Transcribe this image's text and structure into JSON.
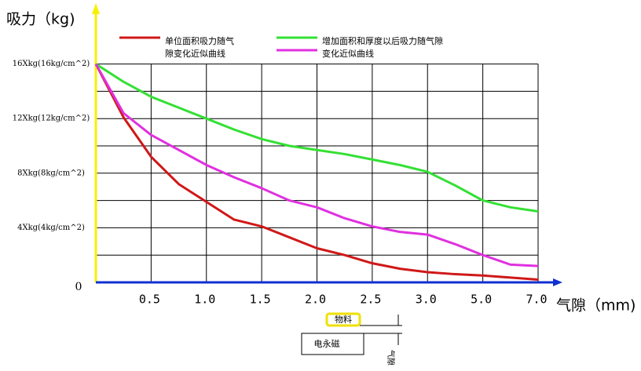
{
  "chart_data": {
    "type": "line",
    "y_axis_label": "吸力（kg)",
    "x_axis_label": "气隙（mm)",
    "categories": [
      null,
      null,
      "0.5",
      null,
      "1.0",
      null,
      "1.5",
      null,
      "2.0",
      null,
      "2.5",
      null,
      "3.0",
      null,
      "5.0",
      null,
      "7.0"
    ],
    "ylim": [
      0,
      20
    ],
    "yticks": [
      {
        "value": 0,
        "label": "0"
      },
      {
        "value": 4,
        "label": "4Xkg(4kg/cm^2)"
      },
      {
        "value": 8,
        "label": "8Xkg(8kg/cm^2)"
      },
      {
        "value": 12,
        "label": "12Xkg(12kg/cm^2)"
      },
      {
        "value": 16,
        "label": "16Xkg(16kg/cm^2)"
      }
    ],
    "minor_yticks": [
      2,
      6,
      10,
      14
    ],
    "grid": true,
    "series": [
      {
        "name": "单位面积吸力随气\n隙变化近似曲线",
        "color": "#d01818",
        "values": [
          16,
          12.1,
          9.2,
          7.2,
          5.9,
          4.6,
          4.1,
          3.3,
          2.5,
          2.0,
          1.4,
          1.0,
          0.75,
          0.6,
          0.5,
          0.35,
          0.2
        ]
      },
      {
        "name": "增加面积和厚度以后吸力随气隙",
        "color": "#33e033",
        "values": [
          16,
          14.7,
          13.6,
          12.8,
          12.0,
          11.2,
          10.5,
          10.0,
          9.7,
          9.4,
          9.0,
          8.6,
          8.1,
          7.1,
          6.0,
          5.5,
          5.2
        ]
      },
      {
        "name": "变化近似曲线",
        "color": "#e030e0",
        "values": [
          16,
          12.4,
          10.8,
          9.7,
          8.6,
          7.7,
          6.9,
          6.0,
          5.5,
          4.7,
          4.1,
          3.7,
          3.5,
          2.8,
          2.0,
          1.3,
          1.2
        ]
      }
    ]
  },
  "diagram": {
    "material": "物料",
    "magnet": "电永磁",
    "gap": "气隙"
  }
}
